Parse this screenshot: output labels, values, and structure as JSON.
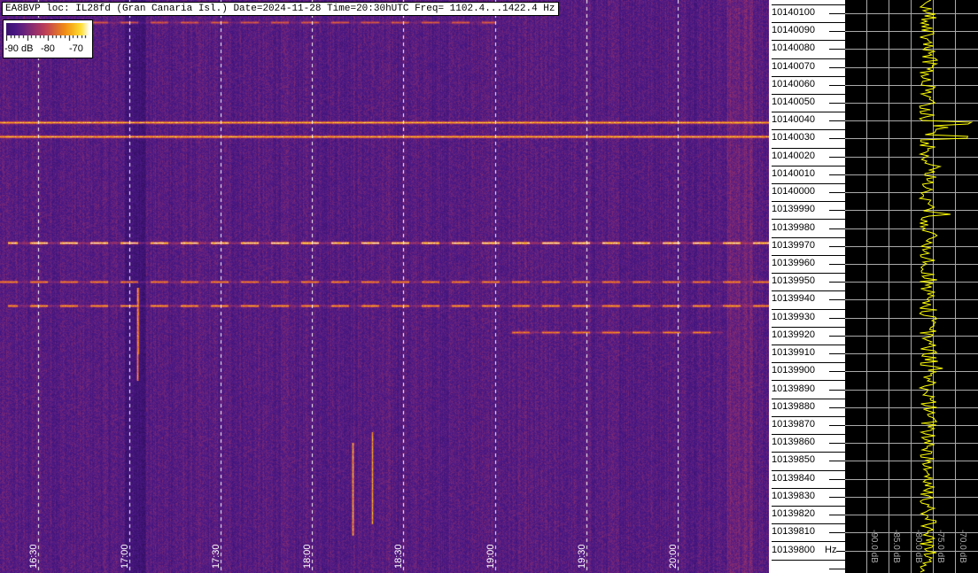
{
  "title": "EA8BVP loc: IL28fd (Gran Canaria Isl.) Date=2024-11-28 Time=20:30hUTC Freq= 1102.4...1422.4 Hz",
  "legend": {
    "labels": [
      "-90 dB",
      "-80",
      "-70"
    ],
    "values_db": [
      -90,
      -80,
      -70
    ]
  },
  "chart_data": {
    "type": "heatmap",
    "title": "EA8BVP loc: IL28fd (Gran Canaria Isl.) Date=2024-11-28 Time=20:30hUTC Freq= 1102.4...1422.4 Hz",
    "x_ticks": [
      "16:30",
      "17:00",
      "17:30",
      "18:00",
      "18:30",
      "19:00",
      "19:30",
      "20:00"
    ],
    "x_range": [
      "16:17:30",
      "20:30"
    ],
    "y_ticks": [
      10140100,
      10140090,
      10140080,
      10140070,
      10140060,
      10140050,
      10140040,
      10140030,
      10140020,
      10140010,
      10140000,
      10139990,
      10139980,
      10139970,
      10139960,
      10139950,
      10139940,
      10139930,
      10139920,
      10139910,
      10139900,
      10139890,
      10139880,
      10139870,
      10139860,
      10139850,
      10139840,
      10139830,
      10139820,
      10139810,
      10139800
    ],
    "y_unit": "Hz",
    "y_range": [
      10139787.4,
      10140107.4
    ],
    "grid": true,
    "colorscale_db": [
      -90,
      -70
    ],
    "colors": {
      "background": "#4a1a86",
      "low": "#1a0040",
      "mid": "#e0701a",
      "high": "#ffffff",
      "spectrum_line": "#ffff00",
      "spectrum_bg": "#000000",
      "spectrum_grid": "#aaaaaa"
    },
    "signals": [
      {
        "freq": 10140039,
        "start": "16:17:30",
        "end": "20:30",
        "level_db": -72,
        "pattern": "continuous"
      },
      {
        "freq": 10140031,
        "start": "16:17:30",
        "end": "20:30",
        "level_db": -72,
        "pattern": "continuous"
      },
      {
        "freq": 10139972,
        "start": "16:20",
        "end": "20:30",
        "level_db": -70,
        "pattern": "pulsed"
      },
      {
        "freq": 10139950,
        "start": "16:17:30",
        "end": "20:30",
        "level_db": -74,
        "pattern": "pulsed"
      },
      {
        "freq": 10139937,
        "start": "16:20",
        "end": "20:30",
        "level_db": -73,
        "pattern": "pulsed"
      },
      {
        "freq": 10139922,
        "start": "19:05",
        "end": "20:15",
        "level_db": -74,
        "pattern": "pulsed"
      },
      {
        "freq": 10140095,
        "start": "16:40",
        "end": "19:00",
        "level_db": -76,
        "pattern": "pulsed"
      }
    ],
    "spectrum": {
      "x_ticks": [
        "-90.0 dB",
        "-85.0 dB",
        "-80.0 dB",
        "-75.0 dB",
        "-70.0 dB"
      ],
      "x_values": [
        -90,
        -85,
        -80,
        -75,
        -70
      ],
      "noise_floor_db": -76,
      "peaks": [
        {
          "freq": 10140039,
          "db": -67
        },
        {
          "freq": 10140031,
          "db": -67
        }
      ]
    }
  }
}
